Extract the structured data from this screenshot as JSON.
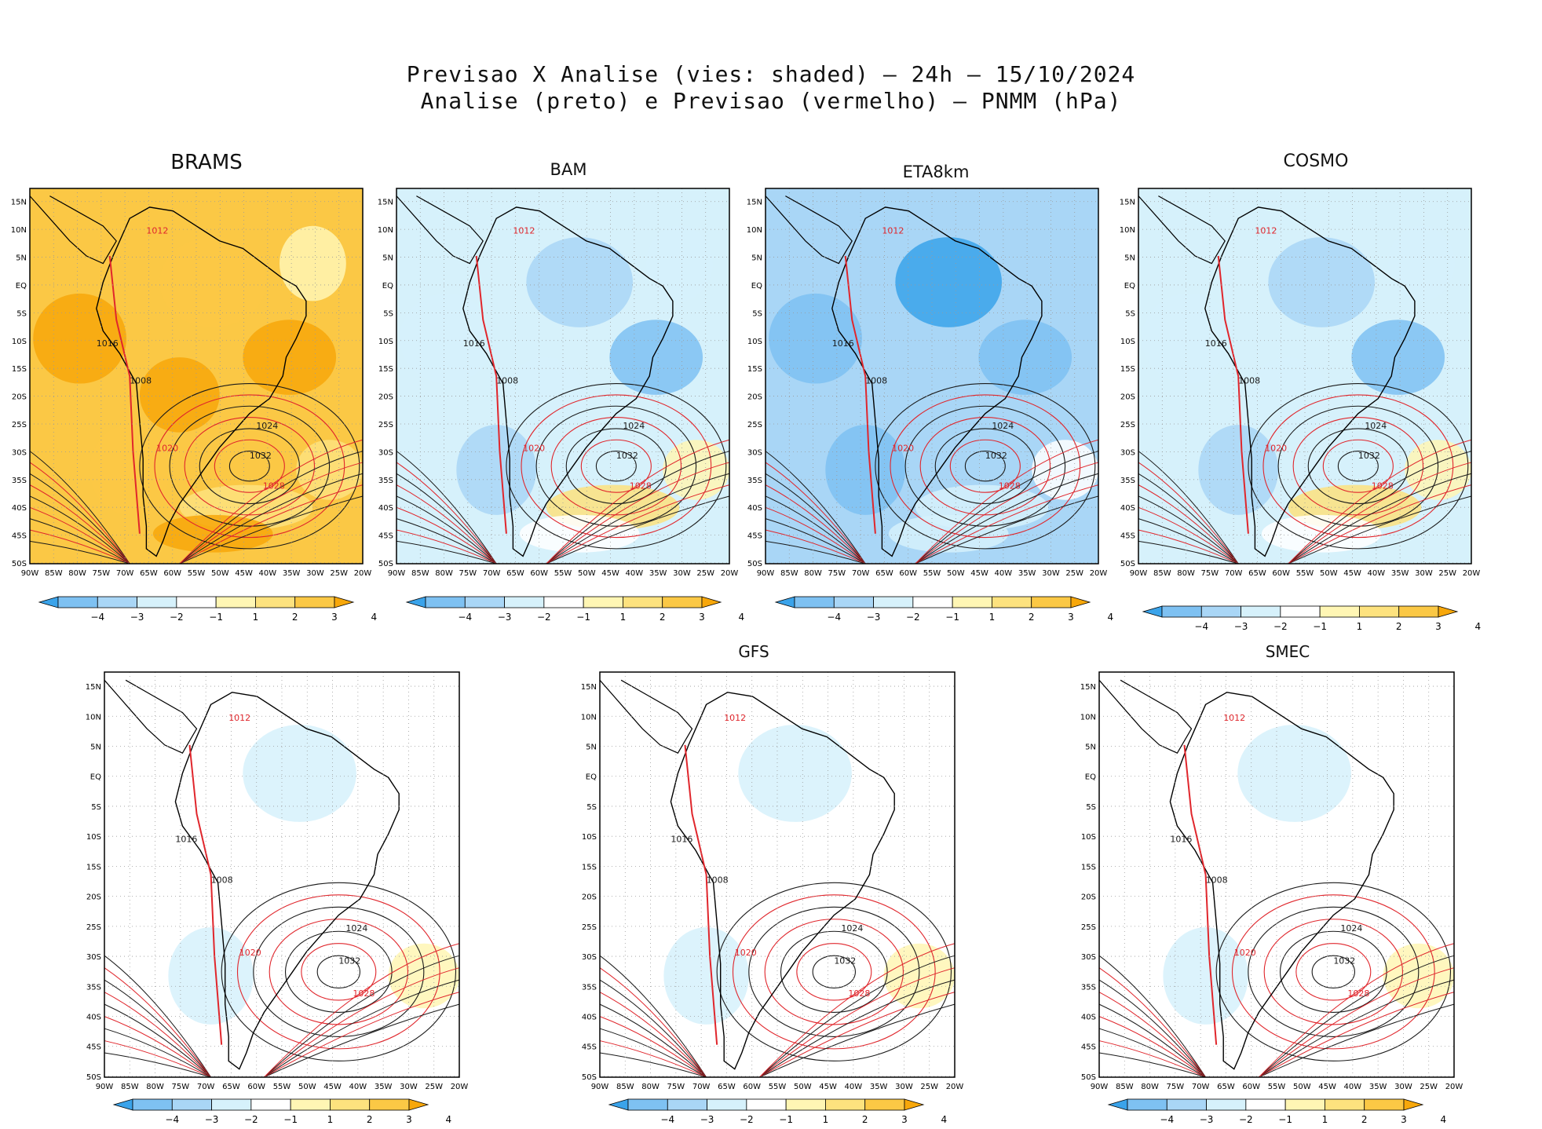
{
  "title": {
    "line1": "Previsao X Analise (vies: shaded) — 24h — 15/10/2024",
    "line2": "Analise (preto) e Previsao (vermelho) — PNMM (hPa)"
  },
  "axes": {
    "lat_labels": [
      "15N",
      "10N",
      "5N",
      "EQ",
      "5S",
      "10S",
      "15S",
      "20S",
      "25S",
      "30S",
      "35S",
      "40S",
      "45S",
      "50S"
    ],
    "lon_labels": [
      "90W",
      "85W",
      "80W",
      "75W",
      "70W",
      "65W",
      "60W",
      "55W",
      "50W",
      "45W",
      "40W",
      "35W",
      "30W",
      "25W",
      "20W"
    ]
  },
  "colorbar": {
    "labels": [
      "−4",
      "−3",
      "−2",
      "−1",
      "1",
      "2",
      "3",
      "4"
    ],
    "colors": [
      "#3aa3ea",
      "#7ec1f2",
      "#a9d6f6",
      "#d6f1fb",
      "#ffffff",
      "#fff6b4",
      "#fde27e",
      "#fbc845",
      "#f7a70a"
    ]
  },
  "isobar_labels": [
    "1008",
    "1012",
    "1016",
    "1020",
    "1024",
    "1028",
    "1032"
  ],
  "colors": {
    "analysis_line": "#1a1a1a",
    "forecast_line": "#e0262c",
    "grid": "#9a9a9a"
  },
  "panels": [
    {
      "id": "brams",
      "title": "BRAMS",
      "bias": "warm"
    },
    {
      "id": "bam",
      "title": "BAM",
      "bias": "cool-mixed"
    },
    {
      "id": "eta8km",
      "title": "ETA8km",
      "bias": "cool"
    },
    {
      "id": "cosmo",
      "title": "COSMO",
      "bias": "cool-mixed"
    },
    {
      "id": "panel5",
      "title": "",
      "bias": "light"
    },
    {
      "id": "gfs",
      "title": "GFS",
      "bias": "light"
    },
    {
      "id": "smec",
      "title": "SMEC",
      "bias": "light"
    }
  ]
}
